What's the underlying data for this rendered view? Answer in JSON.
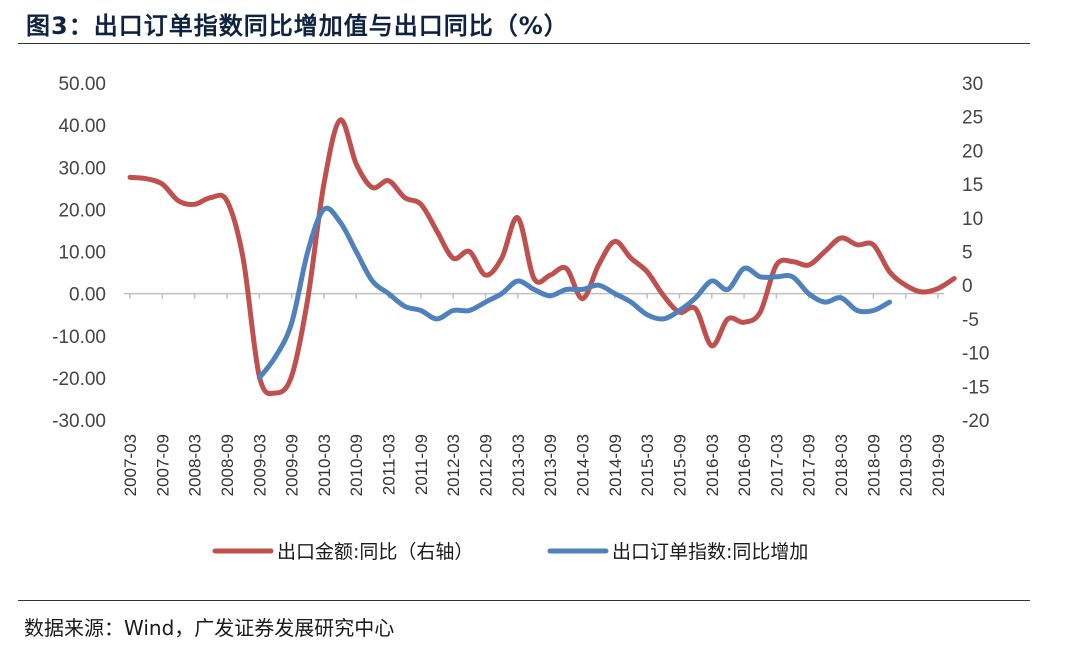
{
  "header": {
    "title": "图3：出口订单指数同比增加值与出口同比（%）"
  },
  "footer": {
    "source": "数据来源：Wind，广发证券发展研究中心"
  },
  "colors": {
    "export_yoy": "#c0504d",
    "order_index": "#4f81bd"
  },
  "chart_data": {
    "type": "line",
    "title": "出口订单指数同比增加值与出口同比（%）",
    "x_ticks": [
      "2007-03",
      "2007-09",
      "2008-03",
      "2008-09",
      "2009-03",
      "2009-09",
      "2010-03",
      "2010-09",
      "2011-03",
      "2011-09",
      "2012-03",
      "2012-09",
      "2013-03",
      "2013-09",
      "2014-03",
      "2014-09",
      "2015-03",
      "2015-09",
      "2016-03",
      "2016-09",
      "2017-03",
      "2017-09",
      "2018-03",
      "2018-09",
      "2019-03",
      "2019-09"
    ],
    "left_axis": {
      "ylim": [
        -30,
        50
      ],
      "ticks": [
        "50.00",
        "40.00",
        "30.00",
        "20.00",
        "10.00",
        "0.00",
        "-10.00",
        "-20.00",
        "-30.00"
      ]
    },
    "right_axis": {
      "ylim": [
        -20,
        30
      ],
      "ticks": [
        "30",
        "25",
        "20",
        "15",
        "10",
        "5",
        "0",
        "-5",
        "-10",
        "-15",
        "-20"
      ]
    },
    "series": [
      {
        "name": "出口金额:同比（右轴）",
        "axis": "right",
        "points": [
          [
            0,
            16
          ],
          [
            0.5,
            15.8
          ],
          [
            1,
            15
          ],
          [
            1.5,
            12.5
          ],
          [
            2,
            12
          ],
          [
            2.5,
            13
          ],
          [
            3,
            12.5
          ],
          [
            3.5,
            4
          ],
          [
            4,
            -13.5
          ],
          [
            4.5,
            -16
          ],
          [
            5,
            -13.5
          ],
          [
            5.5,
            -2
          ],
          [
            6,
            15
          ],
          [
            6.5,
            24.5
          ],
          [
            7,
            18
          ],
          [
            7.5,
            14.5
          ],
          [
            8,
            15.5
          ],
          [
            8.5,
            13
          ],
          [
            9,
            12
          ],
          [
            9.5,
            8
          ],
          [
            10,
            4
          ],
          [
            10.5,
            5
          ],
          [
            11,
            1.5
          ],
          [
            11.5,
            4
          ],
          [
            12,
            10
          ],
          [
            12.5,
            1
          ],
          [
            13,
            1.5
          ],
          [
            13.5,
            2.5
          ],
          [
            14,
            -2
          ],
          [
            14.5,
            3
          ],
          [
            15,
            6.5
          ],
          [
            15.5,
            4
          ],
          [
            16,
            2
          ],
          [
            16.5,
            -1.5
          ],
          [
            17,
            -4
          ],
          [
            17.5,
            -3.5
          ],
          [
            18,
            -9
          ],
          [
            18.5,
            -5
          ],
          [
            19,
            -5.5
          ],
          [
            19.5,
            -4
          ],
          [
            20,
            3
          ],
          [
            20.5,
            3.5
          ],
          [
            21,
            3
          ],
          [
            21.5,
            5
          ],
          [
            22,
            7
          ],
          [
            22.5,
            6
          ],
          [
            23,
            6
          ],
          [
            23.5,
            2
          ],
          [
            24,
            0
          ],
          [
            24.5,
            -1
          ],
          [
            25,
            -0.5
          ],
          [
            25.5,
            1
          ]
        ]
      },
      {
        "name": "出口订单指数:同比增加",
        "axis": "left",
        "points": [
          [
            4,
            -20
          ],
          [
            4.5,
            -15
          ],
          [
            5,
            -7
          ],
          [
            5.5,
            10
          ],
          [
            6,
            20
          ],
          [
            6.5,
            17
          ],
          [
            7,
            10
          ],
          [
            7.5,
            3
          ],
          [
            8,
            0
          ],
          [
            8.5,
            -3
          ],
          [
            9,
            -4
          ],
          [
            9.5,
            -6
          ],
          [
            10,
            -4
          ],
          [
            10.5,
            -4
          ],
          [
            11,
            -2
          ],
          [
            11.5,
            0
          ],
          [
            12,
            3
          ],
          [
            12.5,
            1
          ],
          [
            13,
            -0.5
          ],
          [
            13.5,
            1
          ],
          [
            14,
            1
          ],
          [
            14.5,
            2
          ],
          [
            15,
            0
          ],
          [
            15.5,
            -2
          ],
          [
            16,
            -5
          ],
          [
            16.5,
            -6
          ],
          [
            17,
            -4
          ],
          [
            17.5,
            -1
          ],
          [
            18,
            3
          ],
          [
            18.5,
            1
          ],
          [
            19,
            6
          ],
          [
            19.5,
            4
          ],
          [
            20,
            4
          ],
          [
            20.5,
            4
          ],
          [
            21,
            0
          ],
          [
            21.5,
            -2
          ],
          [
            22,
            -1
          ],
          [
            22.5,
            -4
          ],
          [
            23,
            -4
          ],
          [
            23.5,
            -2
          ]
        ]
      }
    ]
  }
}
